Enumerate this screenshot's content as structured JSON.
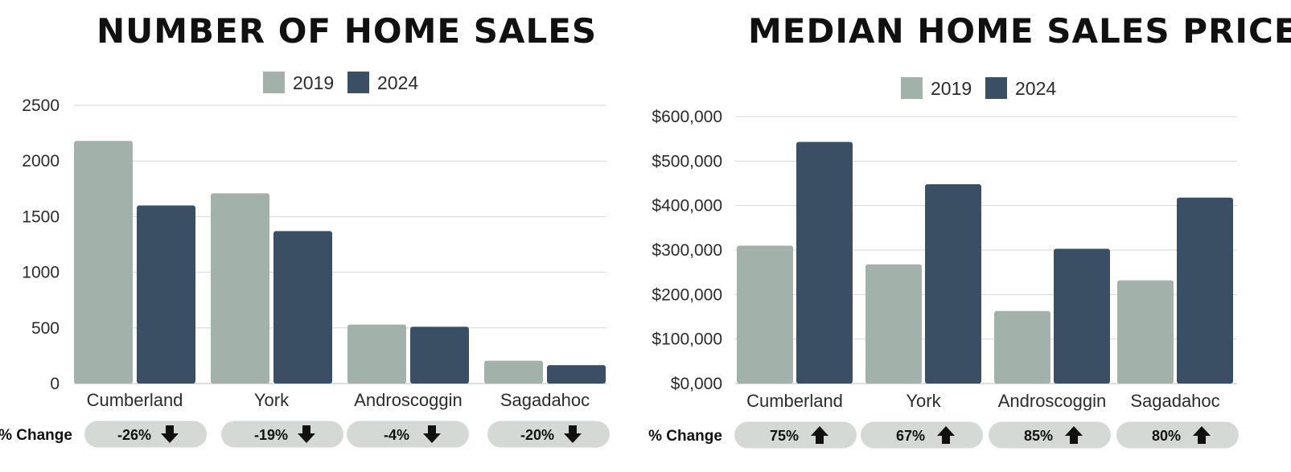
{
  "charts": [
    {
      "id": "left",
      "title": "NUMBER OF HOME SALES",
      "pct_change_label": "% Change",
      "pct_changes": [
        {
          "text": "-26%",
          "direction": "down"
        },
        {
          "text": "-19%",
          "direction": "down"
        },
        {
          "text": "-4%",
          "direction": "down"
        },
        {
          "text": "-20%",
          "direction": "down"
        }
      ]
    },
    {
      "id": "right",
      "title": "MEDIAN HOME SALES PRICE",
      "pct_change_label": "% Change",
      "pct_changes": [
        {
          "text": "75%",
          "direction": "up"
        },
        {
          "text": "67%",
          "direction": "up"
        },
        {
          "text": "85%",
          "direction": "up"
        },
        {
          "text": "80%",
          "direction": "up"
        }
      ]
    }
  ],
  "colors": {
    "series_2019": "#a3b1ab",
    "series_2024": "#3a4e64",
    "grid": "#d6d6d6",
    "pill": "#d4d9d6",
    "arrow": "#111111"
  },
  "chart_data": [
    {
      "type": "bar",
      "title": "NUMBER OF HOME SALES",
      "categories": [
        "Cumberland",
        "York",
        "Androscoggin",
        "Sagadahoc"
      ],
      "series": [
        {
          "name": "2019",
          "values": [
            2180,
            1710,
            530,
            205
          ]
        },
        {
          "name": "2024",
          "values": [
            1600,
            1370,
            510,
            165
          ]
        }
      ],
      "ylim": [
        0,
        2500
      ],
      "yticks": [
        0,
        500,
        1000,
        1500,
        2000,
        2500
      ],
      "ytick_labels": [
        "0",
        "500",
        "1000",
        "1500",
        "2000",
        "2500"
      ],
      "xlabel": "",
      "ylabel": "",
      "grid": true,
      "legend": "top-center"
    },
    {
      "type": "bar",
      "title": "MEDIAN HOME SALES PRICE",
      "categories": [
        "Cumberland",
        "York",
        "Androscoggin",
        "Sagadahoc"
      ],
      "series": [
        {
          "name": "2019",
          "values": [
            310000,
            268000,
            163000,
            232000
          ]
        },
        {
          "name": "2024",
          "values": [
            543000,
            448000,
            303000,
            418000
          ]
        }
      ],
      "ylim": [
        0,
        600000
      ],
      "yticks": [
        0,
        100000,
        200000,
        300000,
        400000,
        500000,
        600000
      ],
      "ytick_labels": [
        "$0,000",
        "$100,000",
        "$200,000",
        "$300,000",
        "$400,000",
        "$500,000",
        "$600,000"
      ],
      "xlabel": "",
      "ylabel": "",
      "grid": true,
      "legend": "top-center"
    }
  ]
}
